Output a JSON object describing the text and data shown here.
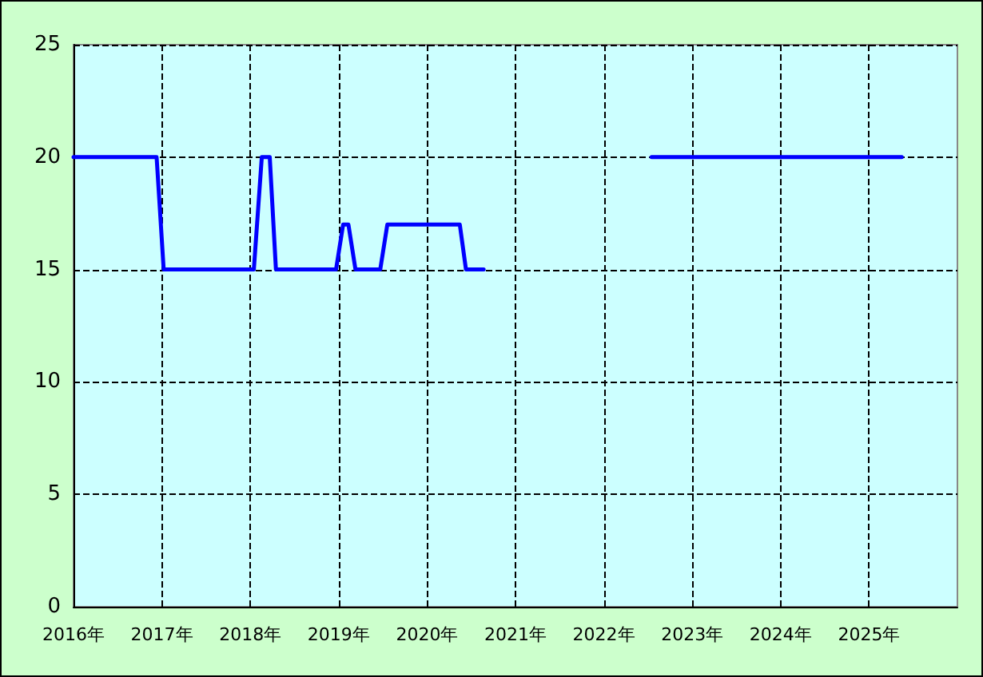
{
  "chart_data": {
    "type": "line",
    "x": [
      2016.0,
      2016.94,
      2017.02,
      2018.04,
      2018.13,
      2018.22,
      2018.29,
      2018.97,
      2019.05,
      2019.11,
      2019.19,
      2019.47,
      2019.55,
      2020.37,
      2020.44,
      2020.64,
      2021.5,
      2022.54,
      2025.37
    ],
    "series": [
      {
        "color": "#0000ff",
        "values": [
          20,
          20,
          15,
          15,
          20,
          20,
          15,
          15,
          17,
          17,
          15,
          15,
          17,
          17,
          15,
          15,
          null,
          20,
          20
        ]
      }
    ],
    "xlim": [
      2016,
      2026
    ],
    "xticks": [
      {
        "value": 2016,
        "label": "2016年"
      },
      {
        "value": 2017,
        "label": "2017年"
      },
      {
        "value": 2018,
        "label": "2018年"
      },
      {
        "value": 2019,
        "label": "2019年"
      },
      {
        "value": 2020,
        "label": "2020年"
      },
      {
        "value": 2021,
        "label": "2021年"
      },
      {
        "value": 2022,
        "label": "2022年"
      },
      {
        "value": 2023,
        "label": "2023年"
      },
      {
        "value": 2024,
        "label": "2024年"
      },
      {
        "value": 2025,
        "label": "2025年"
      }
    ],
    "ylim": [
      0,
      25
    ],
    "yticks": [
      0,
      5,
      10,
      15,
      20,
      25
    ],
    "grid": true,
    "marker": "none",
    "line_style": "solid"
  }
}
